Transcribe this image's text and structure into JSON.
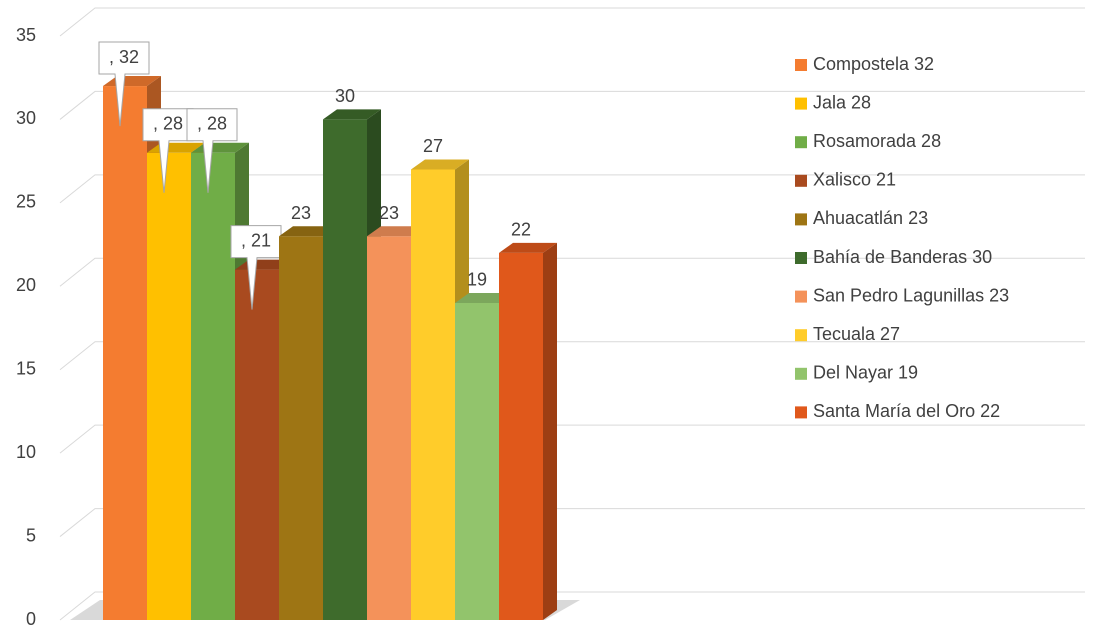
{
  "chart_data": {
    "type": "bar",
    "series": [
      {
        "name": "Compostela  32",
        "color": "#f47c30",
        "values": [
          32
        ],
        "value_labels": [
          ", 32"
        ]
      },
      {
        "name": "Jala 28",
        "color": "#ffc000",
        "values": [
          28
        ],
        "value_labels": [
          ", 28"
        ]
      },
      {
        "name": "Rosamorada 28",
        "color": "#70ad47",
        "values": [
          28
        ],
        "value_labels": [
          ", 28"
        ]
      },
      {
        "name": "Xalisco 21",
        "color": "#a94a1f",
        "values": [
          21
        ],
        "value_labels": [
          ", 21"
        ]
      },
      {
        "name": "Ahuacatlán 23",
        "color": "#9e7514",
        "values": [
          23
        ],
        "value_labels": [
          "23"
        ]
      },
      {
        "name": "Bahía de Banderas 30",
        "color": "#3e6b2c",
        "values": [
          30
        ],
        "value_labels": [
          "30"
        ]
      },
      {
        "name": "San Pedro Lagunillas 23",
        "color": "#f4925a",
        "values": [
          23
        ],
        "value_labels": [
          "23"
        ]
      },
      {
        "name": "Tecuala 27",
        "color": "#ffcc2a",
        "values": [
          27
        ],
        "value_labels": [
          "27"
        ]
      },
      {
        "name": "Del Nayar 19",
        "color": "#92c46c",
        "values": [
          19
        ],
        "value_labels": [
          "19"
        ]
      },
      {
        "name": "Santa María del Oro 22",
        "color": "#e0581b",
        "values": [
          22
        ],
        "value_labels": [
          "22"
        ]
      }
    ],
    "ylim": [
      0,
      35
    ],
    "yticks": [
      0,
      5,
      10,
      15,
      20,
      25,
      30,
      35
    ],
    "grid": true
  }
}
